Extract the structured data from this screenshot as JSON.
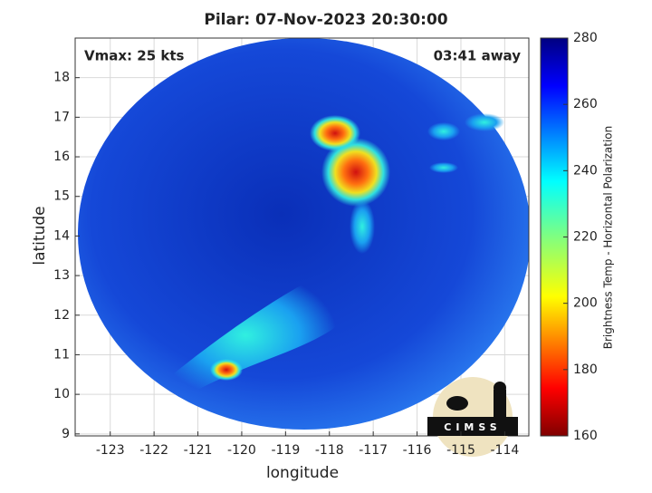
{
  "title": "Pilar: 07-Nov-2023 20:30:00",
  "annotations": {
    "vmax": "Vmax: 25 kts",
    "time_away": "03:41 away"
  },
  "x_axis": {
    "label": "longitude",
    "lim": [
      -123.8,
      -113.45
    ],
    "ticks": [
      -123,
      -122,
      -121,
      -120,
      -119,
      -118,
      -117,
      -116,
      -115,
      -114
    ]
  },
  "y_axis": {
    "label": "latitude",
    "lim": [
      8.95,
      19
    ],
    "ticks": [
      9,
      10,
      11,
      12,
      13,
      14,
      15,
      16,
      17,
      18
    ]
  },
  "colorbar": {
    "label": "Brightness Temp - Horizontal Polarization",
    "lim": [
      160,
      280
    ],
    "ticks": [
      160,
      180,
      200,
      220,
      240,
      260,
      280
    ]
  },
  "logo": "CIMSS"
}
